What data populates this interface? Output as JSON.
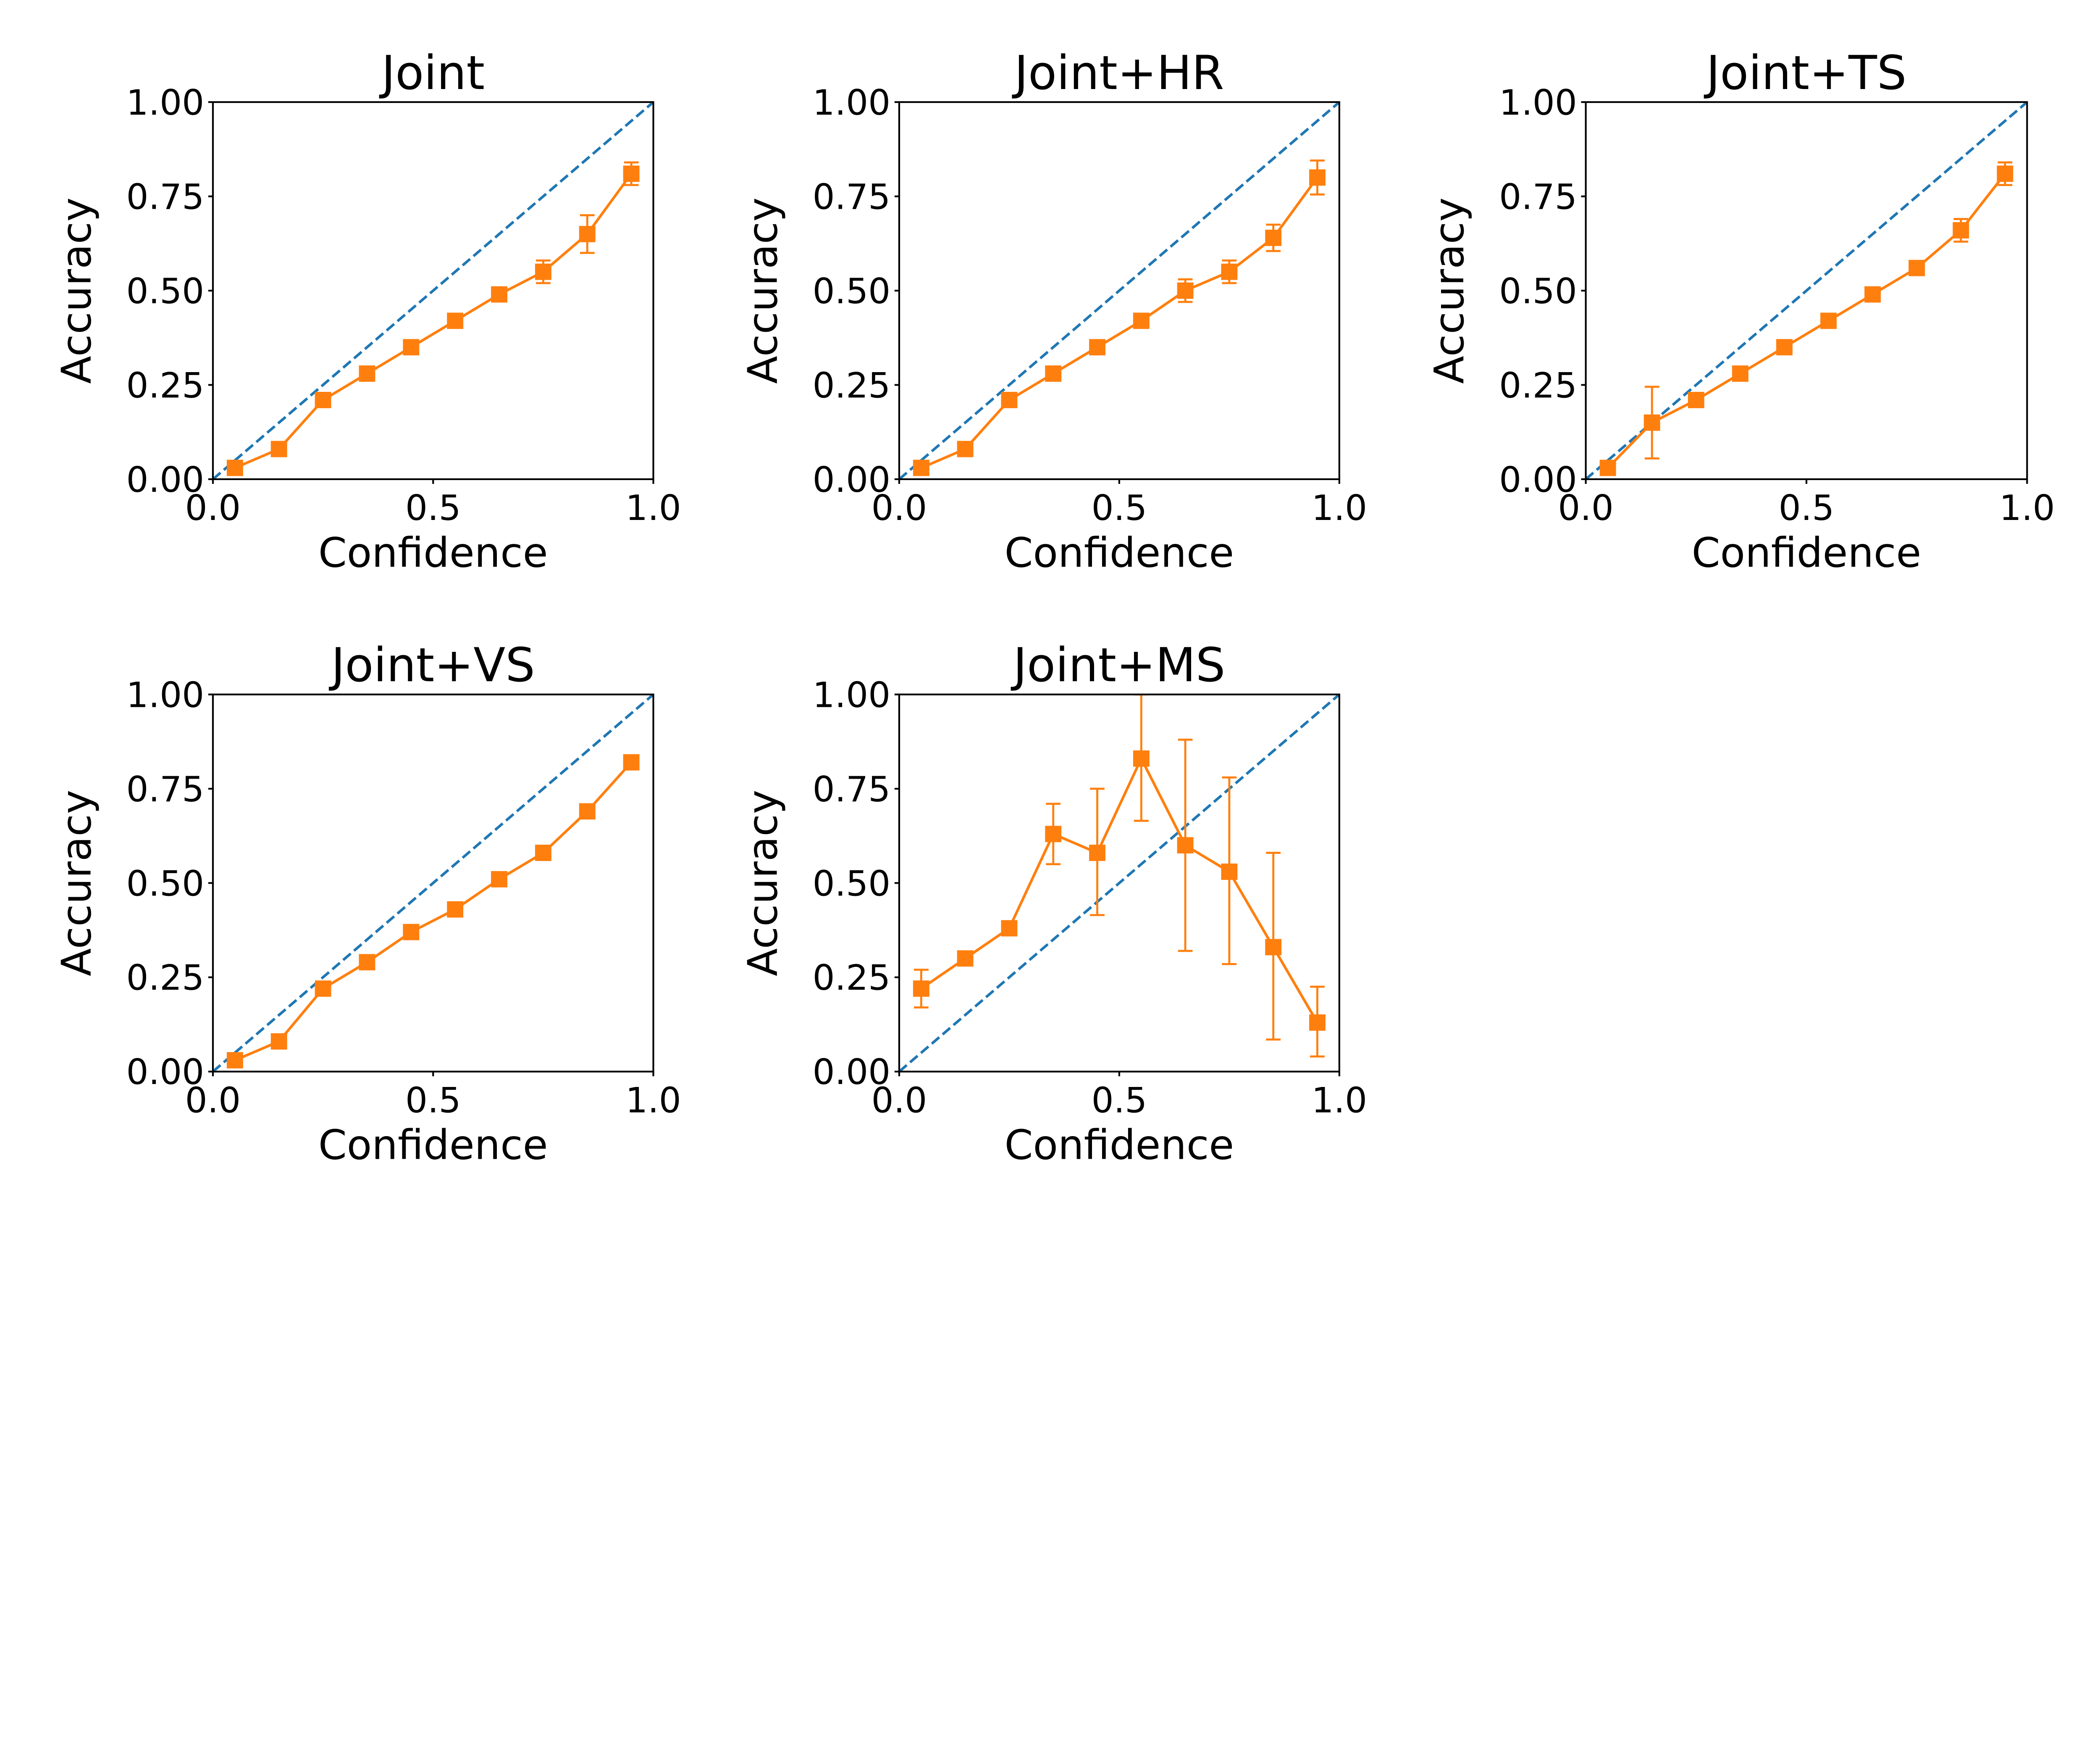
{
  "colors": {
    "diagonal": "#1f77b4",
    "series": "#ff7f0e",
    "axis": "#000000"
  },
  "chart_data": [
    {
      "type": "line",
      "title": "Joint",
      "xlabel": "Confidence",
      "ylabel": "Accuracy",
      "xlim": [
        0,
        1
      ],
      "ylim": [
        0,
        1
      ],
      "xticks": [
        "0.0",
        "0.5",
        "1.0"
      ],
      "yticks": [
        "0.00",
        "0.25",
        "0.50",
        "0.75",
        "1.00"
      ],
      "x": [
        0.05,
        0.15,
        0.25,
        0.35,
        0.45,
        0.55,
        0.65,
        0.75,
        0.85,
        0.95
      ],
      "y": [
        0.03,
        0.08,
        0.21,
        0.28,
        0.35,
        0.42,
        0.49,
        0.55,
        0.65,
        0.81
      ],
      "err_low": [
        0,
        0,
        0,
        0,
        0,
        0,
        0,
        0.03,
        0.05,
        0.03
      ],
      "err_high": [
        0,
        0,
        0,
        0,
        0,
        0,
        0,
        0.03,
        0.05,
        0.03
      ]
    },
    {
      "type": "line",
      "title": "Joint+HR",
      "xlabel": "Confidence",
      "ylabel": "Accuracy",
      "xlim": [
        0,
        1
      ],
      "ylim": [
        0,
        1
      ],
      "xticks": [
        "0.0",
        "0.5",
        "1.0"
      ],
      "yticks": [
        "0.00",
        "0.25",
        "0.50",
        "0.75",
        "1.00"
      ],
      "x": [
        0.05,
        0.15,
        0.25,
        0.35,
        0.45,
        0.55,
        0.65,
        0.75,
        0.85,
        0.95
      ],
      "y": [
        0.03,
        0.08,
        0.21,
        0.28,
        0.35,
        0.42,
        0.5,
        0.55,
        0.64,
        0.8
      ],
      "err_low": [
        0,
        0,
        0,
        0,
        0,
        0,
        0.03,
        0.03,
        0.035,
        0.045
      ],
      "err_high": [
        0,
        0,
        0,
        0,
        0,
        0,
        0.03,
        0.03,
        0.035,
        0.045
      ]
    },
    {
      "type": "line",
      "title": "Joint+TS",
      "xlabel": "Confidence",
      "ylabel": "Accuracy",
      "xlim": [
        0,
        1
      ],
      "ylim": [
        0,
        1
      ],
      "xticks": [
        "0.0",
        "0.5",
        "1.0"
      ],
      "yticks": [
        "0.00",
        "0.25",
        "0.50",
        "0.75",
        "1.00"
      ],
      "x": [
        0.05,
        0.15,
        0.25,
        0.35,
        0.45,
        0.55,
        0.65,
        0.75,
        0.85,
        0.95
      ],
      "y": [
        0.03,
        0.15,
        0.21,
        0.28,
        0.35,
        0.42,
        0.49,
        0.56,
        0.66,
        0.81
      ],
      "err_low": [
        0,
        0.095,
        0,
        0,
        0,
        0,
        0,
        0,
        0.03,
        0.03
      ],
      "err_high": [
        0,
        0.095,
        0,
        0,
        0,
        0,
        0,
        0,
        0.03,
        0.03
      ]
    },
    {
      "type": "line",
      "title": "Joint+VS",
      "xlabel": "Confidence",
      "ylabel": "Accuracy",
      "xlim": [
        0,
        1
      ],
      "ylim": [
        0,
        1
      ],
      "xticks": [
        "0.0",
        "0.5",
        "1.0"
      ],
      "yticks": [
        "0.00",
        "0.25",
        "0.50",
        "0.75",
        "1.00"
      ],
      "x": [
        0.05,
        0.15,
        0.25,
        0.35,
        0.45,
        0.55,
        0.65,
        0.75,
        0.85,
        0.95
      ],
      "y": [
        0.03,
        0.08,
        0.22,
        0.29,
        0.37,
        0.43,
        0.51,
        0.58,
        0.69,
        0.82
      ],
      "err_low": [
        0,
        0,
        0,
        0,
        0,
        0,
        0,
        0,
        0,
        0
      ],
      "err_high": [
        0,
        0,
        0,
        0,
        0,
        0,
        0,
        0,
        0,
        0
      ]
    },
    {
      "type": "line",
      "title": "Joint+MS",
      "xlabel": "Confidence",
      "ylabel": "Accuracy",
      "xlim": [
        0,
        1
      ],
      "ylim": [
        0,
        1
      ],
      "xticks": [
        "0.0",
        "0.5",
        "1.0"
      ],
      "yticks": [
        "0.00",
        "0.25",
        "0.50",
        "0.75",
        "1.00"
      ],
      "x": [
        0.05,
        0.15,
        0.25,
        0.35,
        0.45,
        0.55,
        0.65,
        0.75,
        0.85,
        0.95
      ],
      "y": [
        0.22,
        0.3,
        0.38,
        0.63,
        0.58,
        0.83,
        0.6,
        0.53,
        0.33,
        0.13
      ],
      "err_low": [
        0.05,
        0,
        0,
        0.08,
        0.165,
        0.165,
        0.28,
        0.245,
        0.245,
        0.09
      ],
      "err_high": [
        0.05,
        0,
        0,
        0.08,
        0.17,
        0.17,
        0.28,
        0.25,
        0.25,
        0.095
      ]
    }
  ]
}
